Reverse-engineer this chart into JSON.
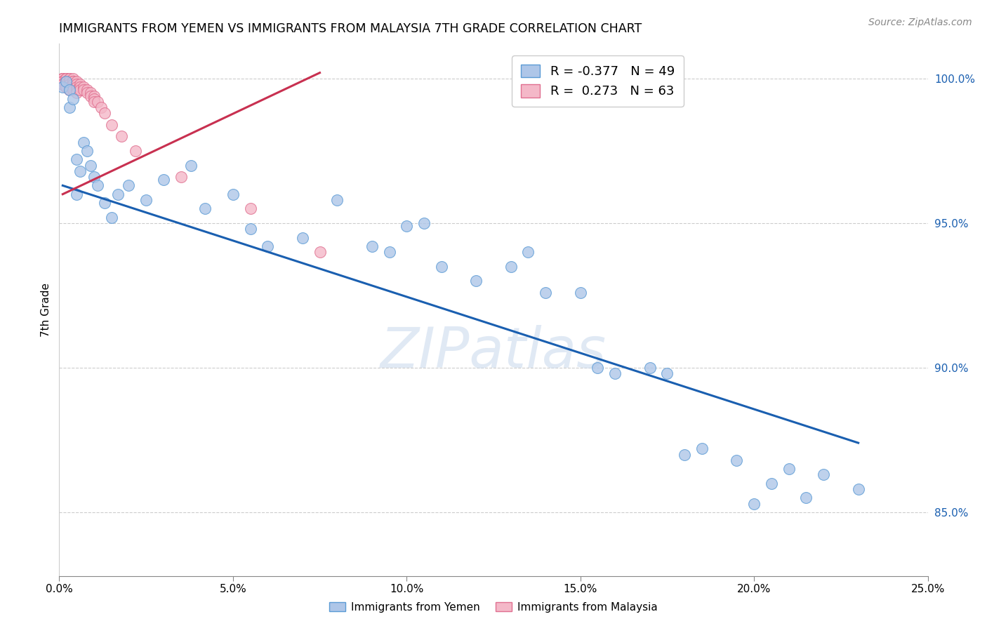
{
  "title": "IMMIGRANTS FROM YEMEN VS IMMIGRANTS FROM MALAYSIA 7TH GRADE CORRELATION CHART",
  "source": "Source: ZipAtlas.com",
  "ylabel": "7th Grade",
  "xlim": [
    0.0,
    0.25
  ],
  "ylim": [
    0.828,
    1.012
  ],
  "xticks": [
    0.0,
    0.05,
    0.1,
    0.15,
    0.2,
    0.25
  ],
  "xtick_labels": [
    "0.0%",
    "5.0%",
    "10.0%",
    "15.0%",
    "20.0%",
    "25.0%"
  ],
  "yticks": [
    0.85,
    0.9,
    0.95,
    1.0
  ],
  "ytick_labels": [
    "85.0%",
    "90.0%",
    "95.0%",
    "100.0%"
  ],
  "blue_R": -0.377,
  "blue_N": 49,
  "pink_R": 0.273,
  "pink_N": 63,
  "blue_color": "#aec6e8",
  "blue_edge": "#5b9bd5",
  "pink_color": "#f4b8c8",
  "pink_edge": "#e07090",
  "blue_line_color": "#1a5fb0",
  "pink_line_color": "#c83050",
  "watermark": "ZIPatlas",
  "blue_scatter_x": [
    0.001,
    0.002,
    0.003,
    0.003,
    0.004,
    0.005,
    0.005,
    0.006,
    0.007,
    0.008,
    0.009,
    0.01,
    0.011,
    0.013,
    0.015,
    0.017,
    0.02,
    0.025,
    0.03,
    0.038,
    0.042,
    0.05,
    0.055,
    0.06,
    0.07,
    0.08,
    0.09,
    0.095,
    0.1,
    0.105,
    0.11,
    0.12,
    0.13,
    0.135,
    0.14,
    0.15,
    0.155,
    0.16,
    0.17,
    0.175,
    0.18,
    0.185,
    0.195,
    0.2,
    0.205,
    0.21,
    0.215,
    0.22,
    0.23
  ],
  "blue_scatter_y": [
    0.997,
    0.999,
    0.99,
    0.996,
    0.993,
    0.96,
    0.972,
    0.968,
    0.978,
    0.975,
    0.97,
    0.966,
    0.963,
    0.957,
    0.952,
    0.96,
    0.963,
    0.958,
    0.965,
    0.97,
    0.955,
    0.96,
    0.948,
    0.942,
    0.945,
    0.958,
    0.942,
    0.94,
    0.949,
    0.95,
    0.935,
    0.93,
    0.935,
    0.94,
    0.926,
    0.926,
    0.9,
    0.898,
    0.9,
    0.898,
    0.87,
    0.872,
    0.868,
    0.853,
    0.86,
    0.865,
    0.855,
    0.863,
    0.858
  ],
  "pink_scatter_x": [
    0.001,
    0.001,
    0.001,
    0.001,
    0.001,
    0.001,
    0.001,
    0.001,
    0.001,
    0.001,
    0.001,
    0.002,
    0.002,
    0.002,
    0.002,
    0.002,
    0.002,
    0.002,
    0.002,
    0.002,
    0.002,
    0.003,
    0.003,
    0.003,
    0.003,
    0.003,
    0.003,
    0.003,
    0.003,
    0.003,
    0.003,
    0.004,
    0.004,
    0.004,
    0.004,
    0.004,
    0.004,
    0.005,
    0.005,
    0.005,
    0.005,
    0.005,
    0.006,
    0.006,
    0.006,
    0.007,
    0.007,
    0.008,
    0.008,
    0.009,
    0.009,
    0.01,
    0.01,
    0.01,
    0.011,
    0.012,
    0.013,
    0.015,
    0.018,
    0.022,
    0.035,
    0.055,
    0.075
  ],
  "pink_scatter_y": [
    1.0,
    1.0,
    1.0,
    1.0,
    1.0,
    1.0,
    0.999,
    0.999,
    0.999,
    0.998,
    0.998,
    1.0,
    1.0,
    1.0,
    0.999,
    0.999,
    0.999,
    0.998,
    0.998,
    0.997,
    0.997,
    1.0,
    1.0,
    0.999,
    0.999,
    0.998,
    0.998,
    0.997,
    0.997,
    0.996,
    0.996,
    1.0,
    0.999,
    0.999,
    0.998,
    0.997,
    0.996,
    0.999,
    0.998,
    0.997,
    0.996,
    0.995,
    0.998,
    0.997,
    0.996,
    0.997,
    0.996,
    0.996,
    0.995,
    0.995,
    0.994,
    0.994,
    0.993,
    0.992,
    0.992,
    0.99,
    0.988,
    0.984,
    0.98,
    0.975,
    0.966,
    0.955,
    0.94
  ],
  "blue_trend_x": [
    0.001,
    0.23
  ],
  "blue_trend_y": [
    0.963,
    0.874
  ],
  "pink_trend_x": [
    0.001,
    0.075
  ],
  "pink_trend_y": [
    0.96,
    1.002
  ]
}
